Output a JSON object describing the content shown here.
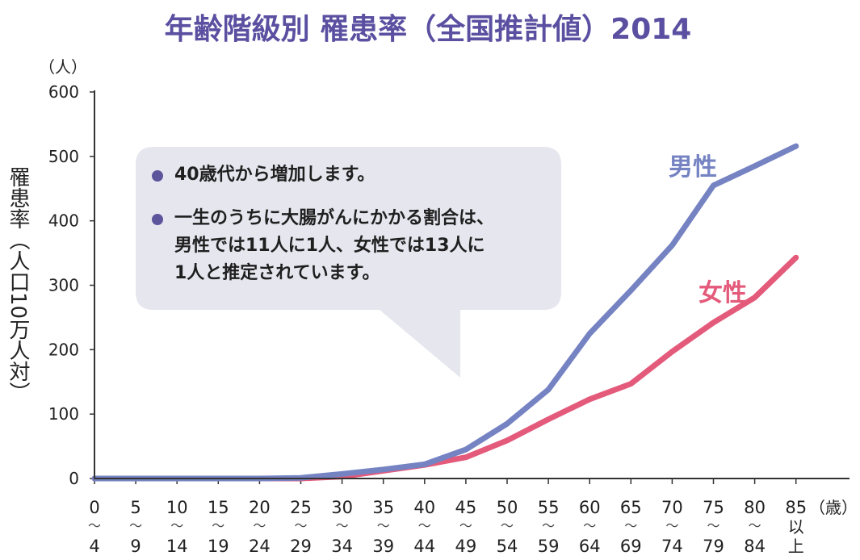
{
  "title": "年齢階級別 罹患率（全国推計値）2014",
  "colors": {
    "title": "#5a4fa0",
    "male": "#7583c3",
    "female": "#e45a7b",
    "callout": "#e6e6ef",
    "bullet": "#5c559c",
    "axis": "#333333"
  },
  "chart_data": {
    "type": "line",
    "title": "年齢階級別 罹患率（全国推計値）2014",
    "ylabel": "罹患率（人口10万人対）",
    "yunit": "（人）",
    "xunit": "（歳）",
    "ylim": [
      0,
      600
    ],
    "yticks": [
      "0",
      "100",
      "200",
      "300",
      "400",
      "500",
      "600"
    ],
    "categories": [
      {
        "top": "0",
        "bottom": "4"
      },
      {
        "top": "5",
        "bottom": "9"
      },
      {
        "top": "10",
        "bottom": "14"
      },
      {
        "top": "15",
        "bottom": "19"
      },
      {
        "top": "20",
        "bottom": "24"
      },
      {
        "top": "25",
        "bottom": "29"
      },
      {
        "top": "30",
        "bottom": "34"
      },
      {
        "top": "35",
        "bottom": "39"
      },
      {
        "top": "40",
        "bottom": "44"
      },
      {
        "top": "45",
        "bottom": "49"
      },
      {
        "top": "50",
        "bottom": "54"
      },
      {
        "top": "55",
        "bottom": "59"
      },
      {
        "top": "60",
        "bottom": "64"
      },
      {
        "top": "65",
        "bottom": "69"
      },
      {
        "top": "70",
        "bottom": "74"
      },
      {
        "top": "75",
        "bottom": "79"
      },
      {
        "top": "80",
        "bottom": "84"
      },
      {
        "top": "85",
        "bottom": "以上",
        "below": "上"
      }
    ],
    "series": [
      {
        "name": "男性",
        "color": "#7583c3",
        "values": [
          0,
          0,
          0,
          0,
          0,
          1,
          7,
          14,
          22,
          45,
          85,
          138,
          225,
          292,
          362,
          455,
          485,
          516
        ]
      },
      {
        "name": "女性",
        "color": "#e45a7b",
        "values": [
          0,
          0,
          0,
          0,
          0,
          0,
          3,
          12,
          21,
          33,
          59,
          92,
          123,
          147,
          197,
          242,
          281,
          343
        ]
      }
    ],
    "grid": false,
    "legend": "inline labels near line ends"
  },
  "callout": {
    "items": [
      {
        "lines": [
          "40歳代から増加します。"
        ]
      },
      {
        "lines": [
          "一生のうちに大腸がんにかかる割合は、",
          "男性では11人に1人、女性では13人に",
          "1人と推定されています。"
        ]
      }
    ]
  }
}
